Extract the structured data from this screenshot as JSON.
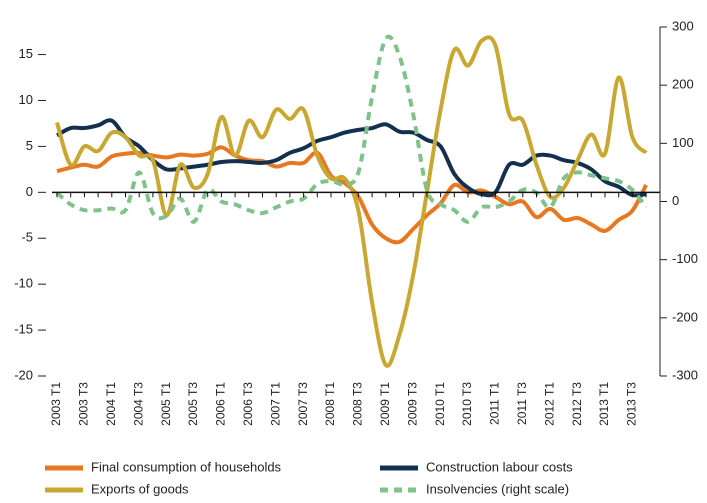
{
  "chart_data": {
    "type": "line",
    "categories": [
      "2003 T1",
      null,
      "2003 T3",
      null,
      "2004 T1",
      null,
      "2004 T3",
      null,
      "2005 T1",
      null,
      "2005 T3",
      null,
      "2006 T1",
      null,
      "2006 T3",
      null,
      "2007 T1",
      null,
      "2007 T3",
      null,
      "2008 T1",
      null,
      "2008 T3",
      null,
      "2009 T1",
      null,
      "2009 T3",
      null,
      "2010 T1",
      null,
      "2010 T3",
      null,
      "2011 T1",
      null,
      "2011 T3",
      null,
      "2012 T1",
      null,
      "2012 T3",
      null,
      "2013 T1",
      null,
      "2013 T3",
      null
    ],
    "ylim": [
      -20,
      18
    ],
    "yticks": [
      -20,
      -15,
      -10,
      -5,
      0,
      5,
      10,
      15
    ],
    "y2lim": [
      -300,
      300
    ],
    "y2ticks": [
      -300,
      -200,
      -100,
      0,
      100,
      200,
      300
    ],
    "series": [
      {
        "name": "Final consumption of households",
        "color": "#e87722",
        "dashed": false,
        "values": [
          2.3,
          2.7,
          3.0,
          2.8,
          3.9,
          4.2,
          4.3,
          4.0,
          3.8,
          4.1,
          4.0,
          4.2,
          4.9,
          4.0,
          3.5,
          3.4,
          2.8,
          3.2,
          3.2,
          4.3,
          1.8,
          1.0,
          -0.5,
          -3.5,
          -5.0,
          -5.4,
          -4.0,
          -2.5,
          -1.2,
          0.8,
          0.0,
          0.2,
          -0.5,
          -1.3,
          -1.0,
          -2.7,
          -1.8,
          -3.0,
          -2.8,
          -3.5,
          -4.2,
          -3.0,
          -2.0,
          0.8
        ]
      },
      {
        "name": "Construction labour costs",
        "color": "#14304f",
        "dashed": false,
        "values": [
          6.2,
          7.0,
          7.0,
          7.3,
          7.8,
          6.0,
          5.0,
          3.5,
          2.5,
          2.6,
          2.8,
          3.0,
          3.3,
          3.4,
          3.3,
          3.2,
          3.5,
          4.3,
          4.8,
          5.6,
          6.0,
          6.5,
          6.8,
          7.0,
          7.4,
          6.6,
          6.5,
          5.7,
          5.0,
          2.0,
          0.5,
          -0.2,
          0.0,
          3.0,
          3.0,
          4.0,
          4.0,
          3.5,
          3.2,
          2.5,
          1.2,
          0.6,
          -0.3,
          -0.2
        ]
      },
      {
        "name": "Exports of goods",
        "color": "#c8a832",
        "dashed": false,
        "values": [
          7.6,
          3.0,
          5.0,
          4.5,
          6.5,
          6.0,
          4.0,
          3.5,
          -2.5,
          3.0,
          0.5,
          2.0,
          8.2,
          4.0,
          7.8,
          6.0,
          9.0,
          8.0,
          9.0,
          4.0,
          1.5,
          1.5,
          -2.0,
          -12.0,
          -18.8,
          -15.5,
          -9.0,
          0.0,
          9.0,
          15.5,
          13.8,
          16.5,
          16.0,
          8.5,
          7.8,
          3.0,
          -0.5,
          0.5,
          3.5,
          6.3,
          4.2,
          12.5,
          6.0,
          4.3
        ]
      },
      {
        "name": "Insolvencies (right scale)",
        "color": "#7fc28a",
        "dashed": true,
        "axis": "y2",
        "values": [
          15,
          -5,
          -15,
          -15,
          -12,
          -15,
          50,
          -20,
          -25,
          5,
          -35,
          20,
          0,
          -5,
          -15,
          -20,
          -10,
          0,
          5,
          30,
          35,
          30,
          50,
          180,
          280,
          250,
          150,
          20,
          -5,
          -15,
          -35,
          -10,
          -10,
          0,
          20,
          15,
          -10,
          40,
          50,
          45,
          40,
          35,
          20,
          -10
        ]
      }
    ]
  }
}
